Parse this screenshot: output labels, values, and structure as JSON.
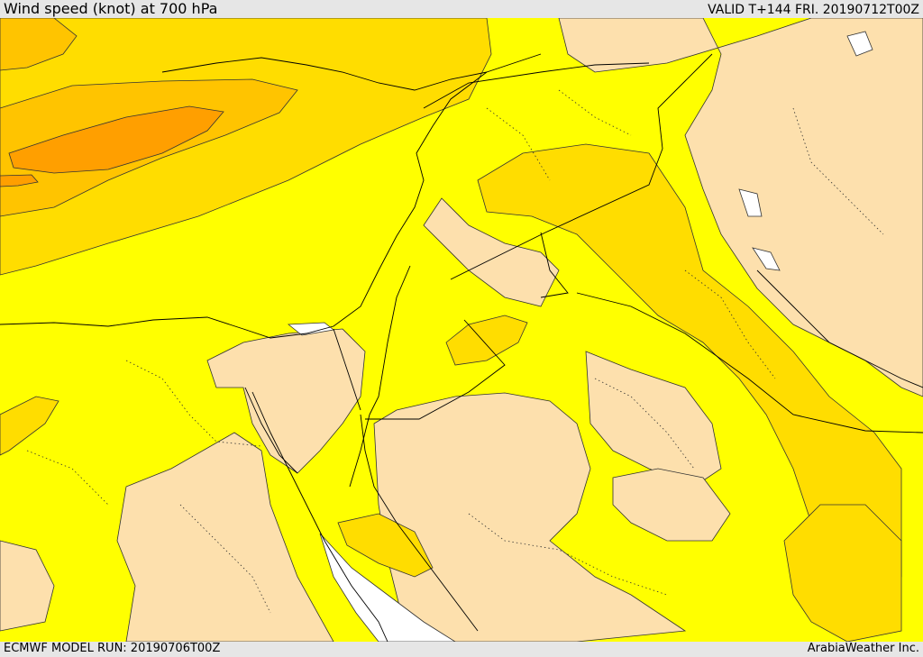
{
  "header": {
    "title": "Wind speed (knot) at 700 hPa",
    "valid": "VALID T+144 FRI. 20190712T00Z"
  },
  "footer": {
    "model_run": "ECMWF MODEL RUN: 20190706T00Z",
    "credit": "ArabiaWeather Inc."
  },
  "map": {
    "colors": {
      "very_low": "#ffffff",
      "low": "#fde0ad",
      "mid": "#ffff00",
      "high": "#ffdd00",
      "higher": "#ffc400",
      "highest": "#ff9f00",
      "contour": "#333333",
      "border": "#000000"
    }
  }
}
